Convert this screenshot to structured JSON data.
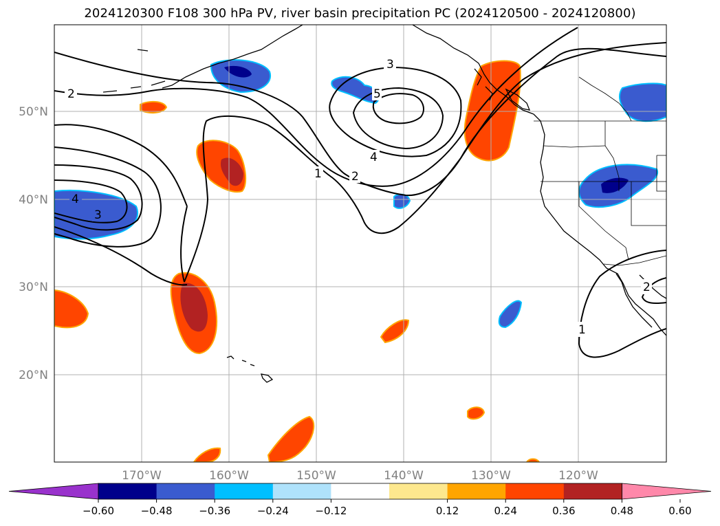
{
  "title": "2024120300 F108 300 hPa PV, river basin precipitation PC (2024120500 - 2024120800)",
  "latitude_labels": [
    "50°N",
    "40°N",
    "30°N",
    "20°N"
  ],
  "longitude_labels": [
    "170°W",
    "160°W",
    "150°W",
    "140°W",
    "130°W",
    "120°W"
  ],
  "contour_labels": [
    "2",
    "3",
    "4",
    "5",
    "1",
    "2",
    "3",
    "4",
    "1",
    "2"
  ],
  "colorbar": {
    "tick_labels": [
      "−0.60",
      "−0.48",
      "−0.36",
      "−0.24",
      "−0.12",
      "0.12",
      "0.24",
      "0.36",
      "0.48",
      "0.60"
    ],
    "colors": [
      "#9932cc",
      "#00008b",
      "#3a5bcf",
      "#00bfff",
      "#afe2fb",
      "#ffffff",
      "#fde88e",
      "#ffa500",
      "#ff4500",
      "#b22222",
      "#ff88aa"
    ]
  },
  "colors": {
    "coast": "#000000",
    "gridline": "#b0b0b0",
    "contour": "#000000",
    "axis_label": "#808080"
  }
}
